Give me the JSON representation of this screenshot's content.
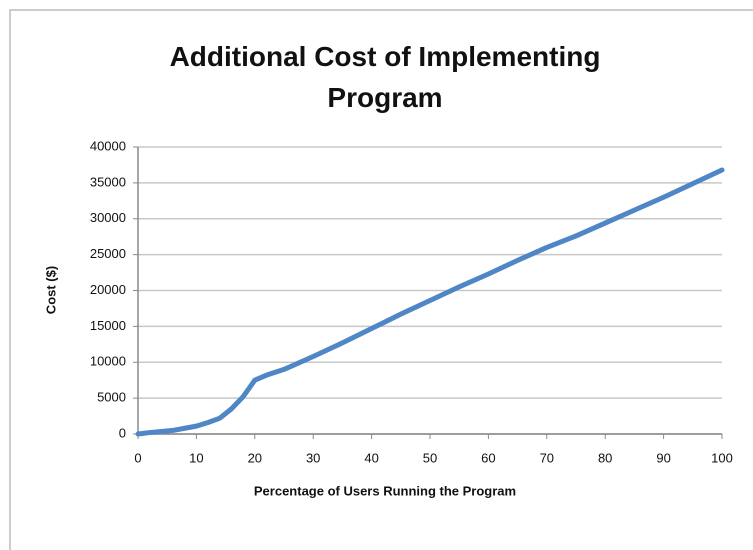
{
  "chart_data": {
    "type": "line",
    "title": "Additional Cost of Implementing Program",
    "x_label": "Percentage of Users Running the Program",
    "y_label": "Cost ($)",
    "x": [
      0,
      2,
      4,
      6,
      8,
      10,
      12,
      14,
      16,
      18,
      20,
      22,
      25,
      30,
      35,
      40,
      45,
      50,
      55,
      60,
      65,
      70,
      75,
      80,
      85,
      90,
      95,
      100
    ],
    "series": [
      {
        "name": "Cost",
        "color": "#4f86c6",
        "values": [
          0,
          200,
          350,
          500,
          800,
          1100,
          1600,
          2200,
          3500,
          5200,
          7500,
          8200,
          9000,
          10800,
          12700,
          14700,
          16700,
          18600,
          20500,
          22300,
          24200,
          26000,
          27600,
          29400,
          31200,
          33000,
          34900,
          36800
        ]
      }
    ],
    "xlim": [
      0,
      100
    ],
    "xticks": [
      0,
      10,
      20,
      30,
      40,
      50,
      60,
      70,
      80,
      90,
      100
    ],
    "ylim": [
      0,
      40000
    ],
    "yticks": [
      0,
      5000,
      10000,
      15000,
      20000,
      25000,
      30000,
      35000,
      40000
    ],
    "grid": true
  }
}
